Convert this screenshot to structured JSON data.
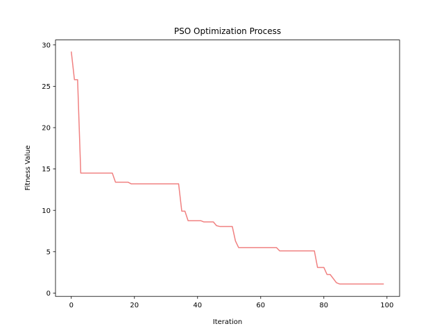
{
  "chart_data": {
    "type": "line",
    "title": "PSO Optimization Process",
    "xlabel": "Iteration",
    "ylabel": "Fitness Value",
    "xlim": [
      -5,
      104
    ],
    "ylim": [
      -0.4,
      30.6
    ],
    "xticks": [
      0,
      20,
      40,
      60,
      80,
      100
    ],
    "yticks": [
      0,
      5,
      10,
      15,
      20,
      25,
      30
    ],
    "grid": false,
    "legend": "none",
    "series": [
      {
        "color": "#f08080",
        "points": [
          [
            0,
            29.2
          ],
          [
            1,
            25.8
          ],
          [
            2,
            25.8
          ],
          [
            3,
            14.5
          ],
          [
            13,
            14.5
          ],
          [
            14,
            13.4
          ],
          [
            18,
            13.4
          ],
          [
            19,
            13.2
          ],
          [
            34,
            13.2
          ],
          [
            35,
            9.9
          ],
          [
            36,
            9.9
          ],
          [
            37,
            8.75
          ],
          [
            41,
            8.75
          ],
          [
            42,
            8.6
          ],
          [
            45,
            8.6
          ],
          [
            46,
            8.15
          ],
          [
            47,
            8.05
          ],
          [
            51,
            8.05
          ],
          [
            52,
            6.3
          ],
          [
            53,
            5.5
          ],
          [
            65,
            5.5
          ],
          [
            66,
            5.1
          ],
          [
            77,
            5.1
          ],
          [
            78,
            3.1
          ],
          [
            80,
            3.1
          ],
          [
            81,
            2.25
          ],
          [
            82,
            2.25
          ],
          [
            84,
            1.25
          ],
          [
            85,
            1.1
          ],
          [
            99,
            1.1
          ]
        ]
      }
    ]
  }
}
